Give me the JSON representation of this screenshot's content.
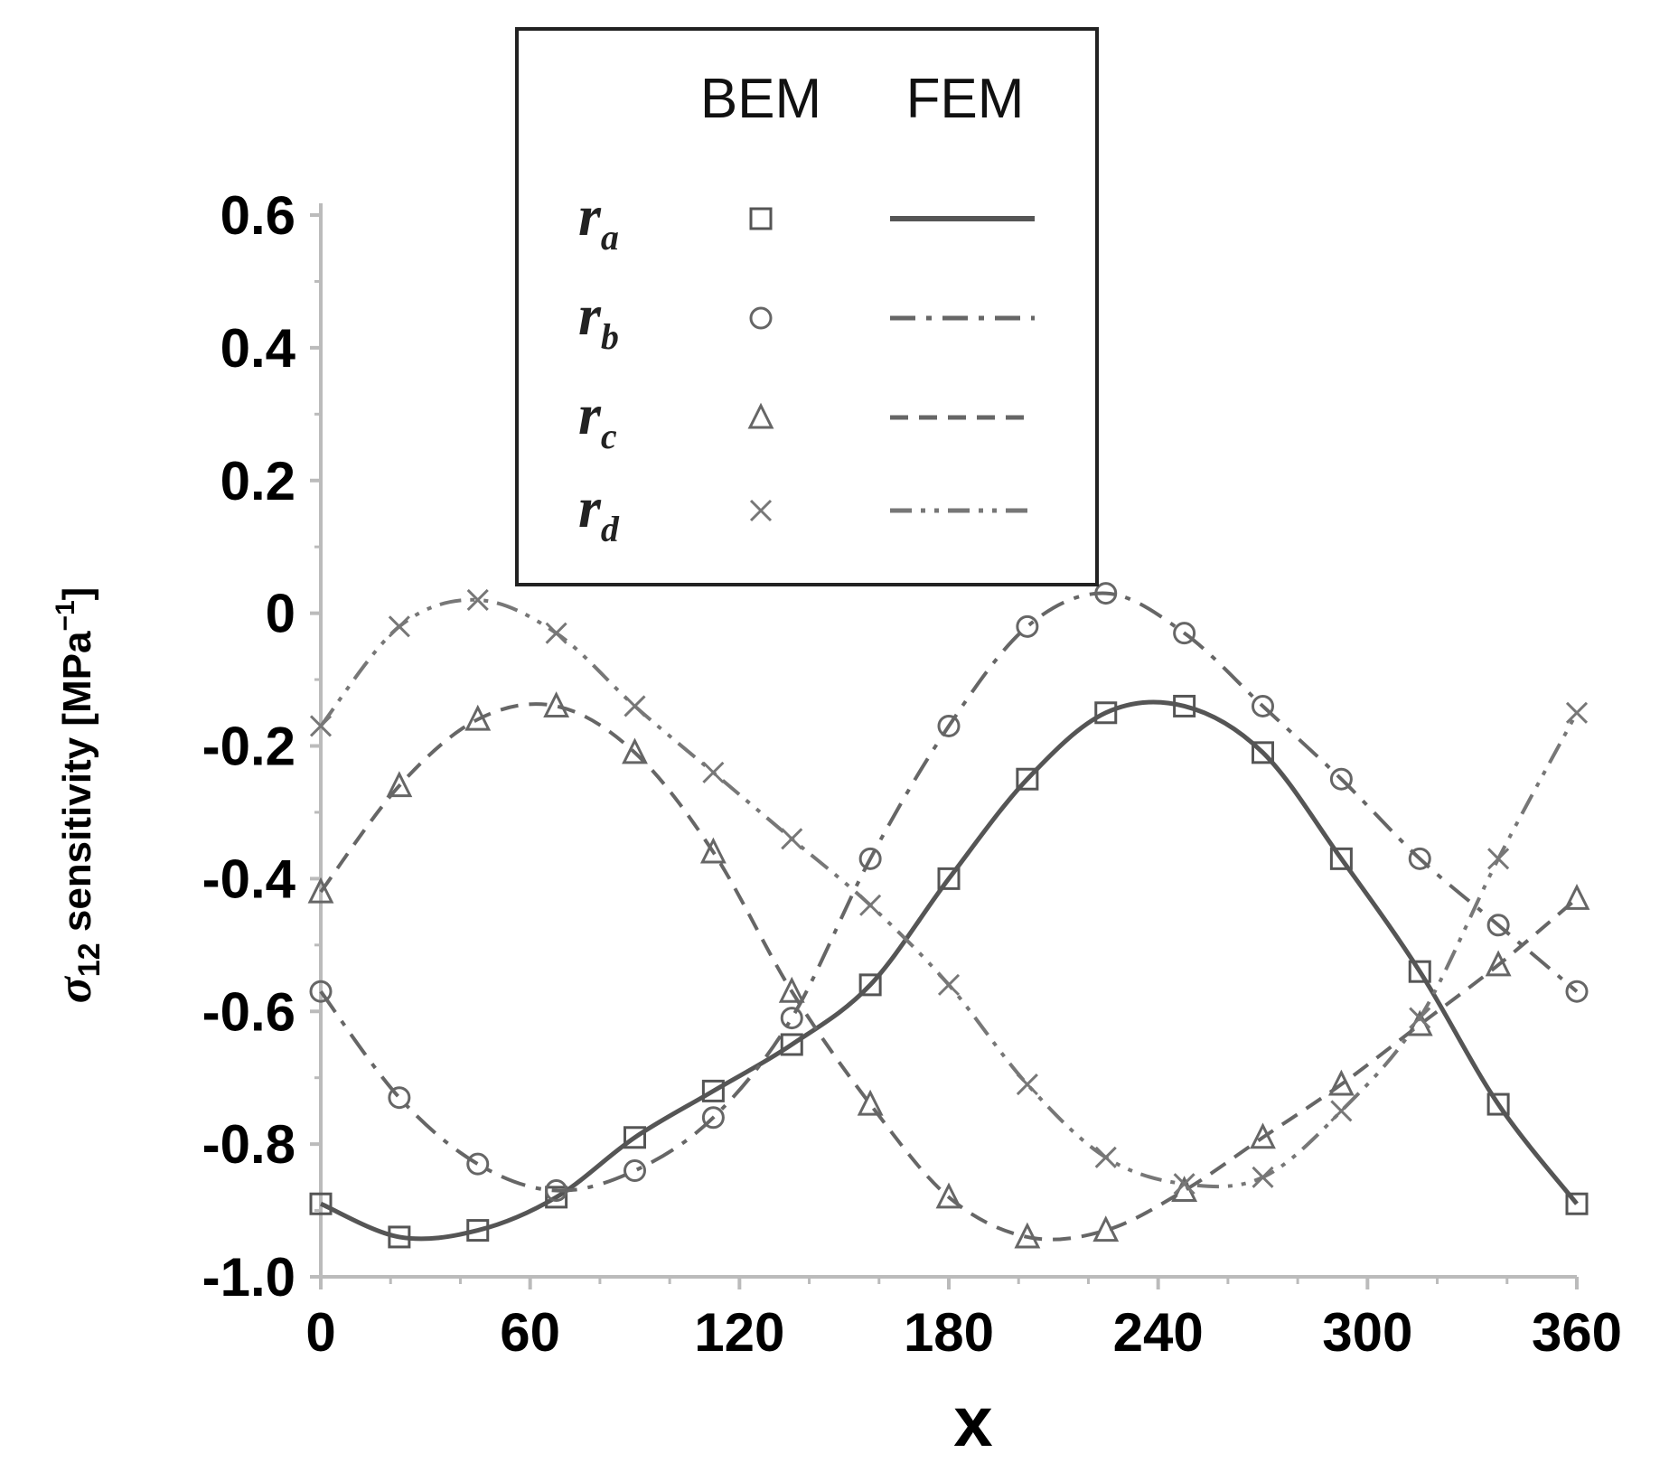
{
  "chart_data": {
    "type": "line",
    "title": "",
    "xlabel": "x",
    "ylabel_main": "σ",
    "ylabel_sub": "12",
    "ylabel_rest": " sensitivity [MPa",
    "ylabel_sup": "−1",
    "ylabel_close": "]",
    "xlim": [
      0,
      360
    ],
    "ylim": [
      -1.0,
      0.6
    ],
    "x_ticks": [
      "0",
      "60",
      "120",
      "180",
      "240",
      "300",
      "360"
    ],
    "y_ticks": [
      "0.6",
      "0.4",
      "0.2",
      "0",
      "-0.2",
      "-0.4",
      "-0.6",
      "-0.8",
      "-1.0"
    ],
    "grid": false,
    "legend": {
      "placement": "top-center",
      "col_bem": "BEM",
      "col_fem": "FEM"
    },
    "series": [
      {
        "name_main": "r",
        "name_sub": "a",
        "bem_marker": "square",
        "fem_line": "solid",
        "color": "#555555",
        "x": [
          0,
          22.5,
          45,
          67.5,
          90,
          112.5,
          135,
          157.5,
          180,
          202.5,
          225,
          247.5,
          270,
          292.5,
          315,
          337.5,
          360
        ],
        "y": [
          -0.89,
          -0.94,
          -0.93,
          -0.88,
          -0.79,
          -0.72,
          -0.65,
          -0.56,
          -0.4,
          -0.25,
          -0.15,
          -0.14,
          -0.21,
          -0.37,
          -0.54,
          -0.74,
          -0.89
        ]
      },
      {
        "name_main": "r",
        "name_sub": "b",
        "bem_marker": "circle",
        "fem_line": "dash-dot",
        "color": "#666666",
        "x": [
          0,
          22.5,
          45,
          67.5,
          90,
          112.5,
          135,
          157.5,
          180,
          202.5,
          225,
          247.5,
          270,
          292.5,
          315,
          337.5,
          360
        ],
        "y": [
          -0.57,
          -0.73,
          -0.83,
          -0.87,
          -0.84,
          -0.76,
          -0.61,
          -0.37,
          -0.17,
          -0.02,
          0.03,
          -0.03,
          -0.14,
          -0.25,
          -0.37,
          -0.47,
          -0.57
        ]
      },
      {
        "name_main": "r",
        "name_sub": "c",
        "bem_marker": "triangle",
        "fem_line": "dashed",
        "color": "#666666",
        "x": [
          0,
          22.5,
          45,
          67.5,
          90,
          112.5,
          135,
          157.5,
          180,
          202.5,
          225,
          247.5,
          270,
          292.5,
          315,
          337.5,
          360
        ],
        "y": [
          -0.42,
          -0.26,
          -0.16,
          -0.14,
          -0.21,
          -0.36,
          -0.57,
          -0.74,
          -0.88,
          -0.94,
          -0.93,
          -0.87,
          -0.79,
          -0.71,
          -0.62,
          -0.53,
          -0.43
        ]
      },
      {
        "name_main": "r",
        "name_sub": "d",
        "bem_marker": "x",
        "fem_line": "dash-dot-dot",
        "color": "#777777",
        "x": [
          0,
          22.5,
          45,
          67.5,
          90,
          112.5,
          135,
          157.5,
          180,
          202.5,
          225,
          247.5,
          270,
          292.5,
          315,
          337.5,
          360
        ],
        "y": [
          -0.17,
          -0.02,
          0.02,
          -0.03,
          -0.14,
          -0.24,
          -0.34,
          -0.44,
          -0.56,
          -0.71,
          -0.82,
          -0.86,
          -0.85,
          -0.75,
          -0.61,
          -0.37,
          -0.15
        ]
      }
    ]
  }
}
